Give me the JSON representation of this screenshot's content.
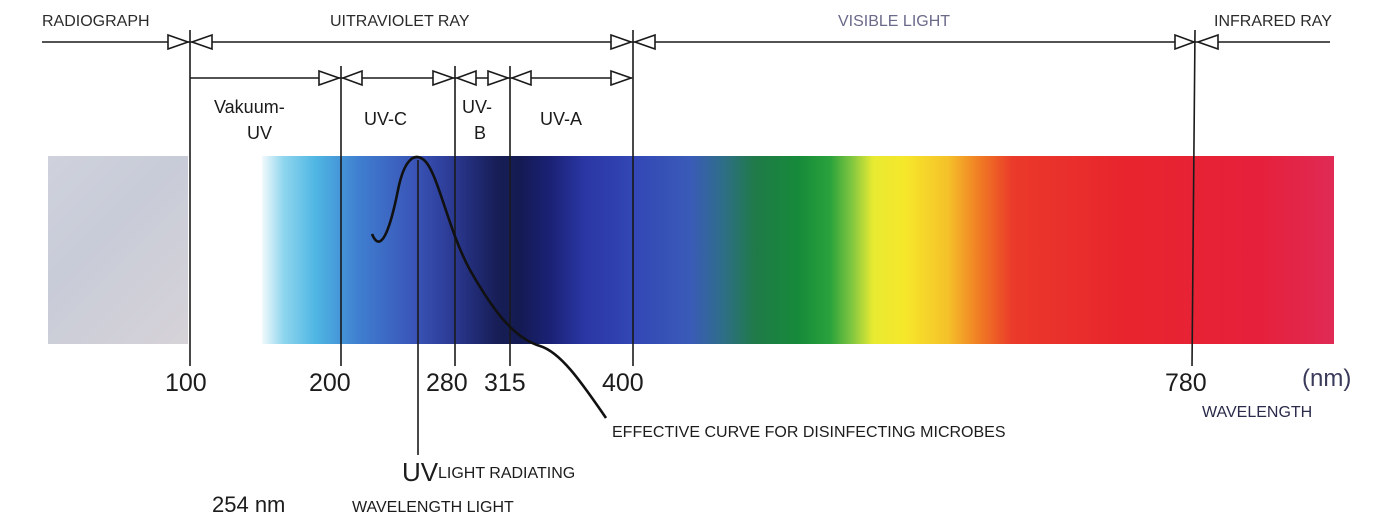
{
  "regions": {
    "radiograph": "RADIOGRAPH",
    "ultraviolet": "UITRAVIOLET RAY",
    "visible": "VISIBLE LIGHT",
    "infrared": "INFRARED RAY"
  },
  "bands": {
    "vacuum_line1": "Vakuum-",
    "vacuum_line2": "UV",
    "uvc": "UV-C",
    "uvb_line1": "UV-",
    "uvb_line2": "B",
    "uva": "UV-A"
  },
  "wavelength_ticks": [
    "100",
    "200",
    "280",
    "315",
    "400",
    "780"
  ],
  "unit": "(nm)",
  "axis_label": "WAVELENGTH",
  "annotations": {
    "effective_curve": "EFFECTIVE CURVE FOR DISINFECTING MICROBES",
    "uv": "UV",
    "light_radiating": "LIGHT RADIATING",
    "nm254": "254 nm",
    "wavelength_light": "WAVELENGTH LIGHT"
  },
  "colors": {
    "line": "#1a1a1a",
    "xray_block": "#cdd0da"
  }
}
